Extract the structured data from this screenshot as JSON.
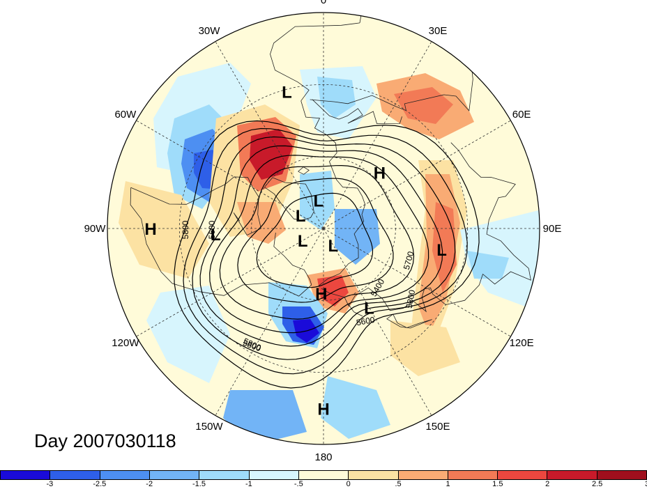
{
  "map_title": "Day 2007030118",
  "longitude_labels": [
    "90E",
    "60E",
    "30E",
    "0",
    "30W",
    "60W",
    "90W",
    "120W",
    "150W",
    "180",
    "150E",
    "120E"
  ],
  "pressure_centers": [
    {
      "type": "L",
      "lon": 100,
      "lat": 40
    },
    {
      "type": "H",
      "lon": 45,
      "lat": 57
    },
    {
      "type": "L",
      "lon": 150,
      "lat": 52
    },
    {
      "type": "H",
      "lon": 180,
      "lat": 15
    },
    {
      "type": "H",
      "lon": -178,
      "lat": 63
    },
    {
      "type": "L",
      "lon": 150,
      "lat": 82
    },
    {
      "type": "L",
      "lon": -60,
      "lat": 79
    },
    {
      "type": "L",
      "lon": -10,
      "lat": 78
    },
    {
      "type": "L",
      "lon": -120,
      "lat": 80
    },
    {
      "type": "L",
      "lon": -15,
      "lat": 31
    },
    {
      "type": "L",
      "lon": -93,
      "lat": 45
    },
    {
      "type": "H",
      "lon": -90,
      "lat": 18
    }
  ],
  "contour_labels": [
    "5800",
    "5600",
    "5800",
    "5400",
    "5700",
    "5800",
    "5600",
    "5800"
  ],
  "colorbar": {
    "colors": [
      "#1a0bd9",
      "#2e5fe8",
      "#4d8ff2",
      "#72b4f6",
      "#9fdcfa",
      "#d7f5fd",
      "#fffbd9",
      "#fce2a3",
      "#f9ab74",
      "#f27a56",
      "#ec473f",
      "#c81a2a",
      "#a00f1d"
    ],
    "labels": [
      "-3",
      "-2.5",
      "-2",
      "-1.5",
      "-1",
      "-.5",
      "0",
      ".5",
      "1",
      "1.5",
      "2",
      "2.5",
      "3"
    ]
  }
}
